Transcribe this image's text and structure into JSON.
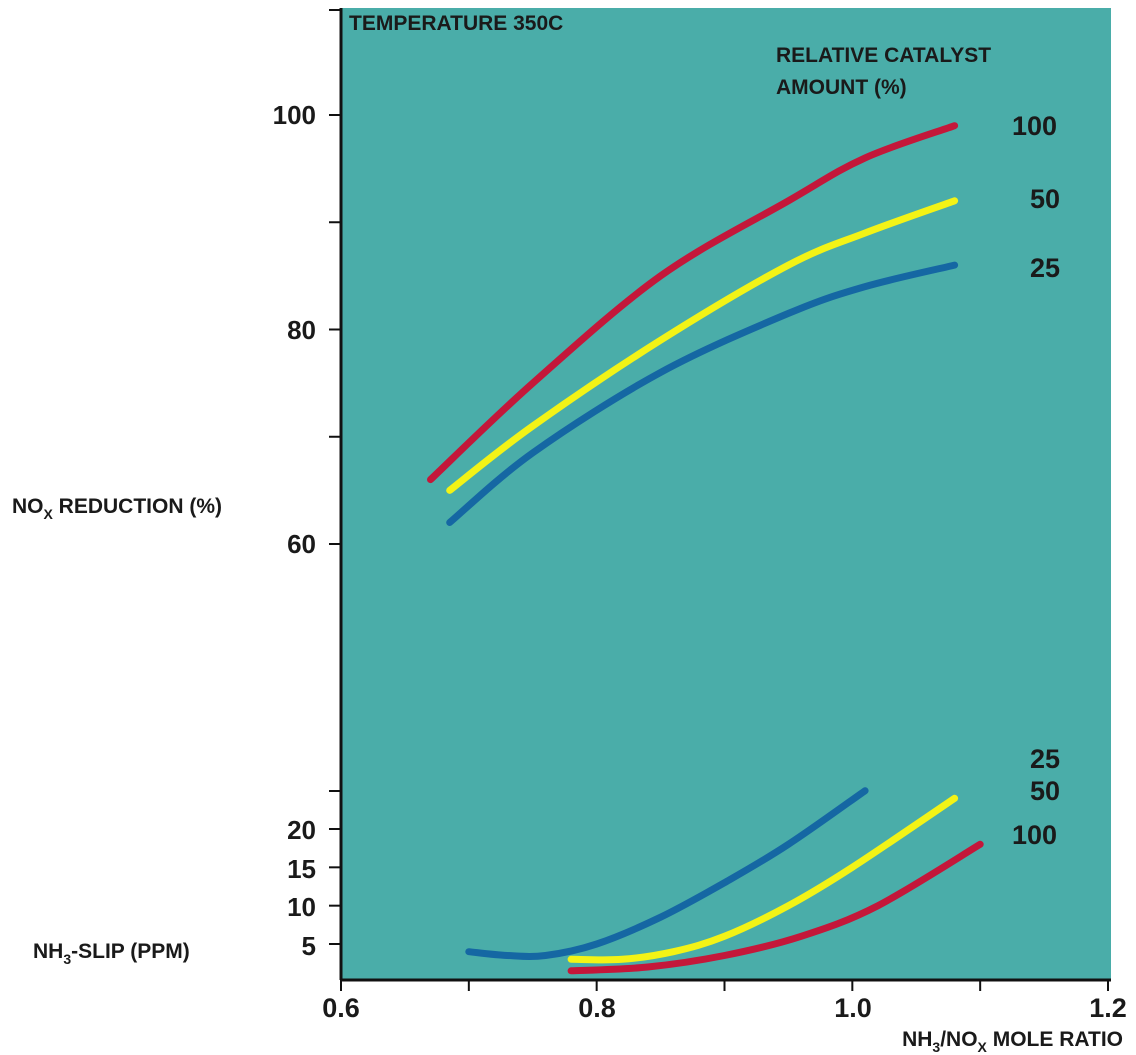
{
  "chart_data": {
    "type": "line",
    "title": "TEMPERATURE 350C",
    "legend_title": "RELATIVE CATALYST AMOUNT (%)",
    "legend_title_lines": [
      "RELATIVE CATALYST",
      "AMOUNT (%)"
    ],
    "legend_placement": "top-right",
    "grid": false,
    "xlabel": "NH3/NOx MOLE RATIO",
    "xlabel_parts": {
      "a": "NH",
      "a_sub": "3",
      "b": "/NO",
      "b_sub": "X",
      "c": " MOLE RATIO"
    },
    "x_ticks": [
      "0.6",
      "0.8",
      "1.0",
      "1.2"
    ],
    "xlim": [
      0.6,
      1.2
    ],
    "colors": {
      "background": "#4aada9",
      "red": "#c4173a",
      "yellow": "#f3f316",
      "blue": "#1567a3",
      "axis": "#111111"
    },
    "panels": [
      {
        "name": "upper",
        "ylabel": "NOx REDUCTION (%)",
        "ylabel_parts": {
          "a": "NO",
          "a_sub": "X",
          "b": " REDUCTION (%)"
        },
        "y_ticks": [
          "100",
          "80",
          "60"
        ],
        "y_tick_values": [
          100,
          80,
          60
        ],
        "y_minor_values": [
          90,
          70
        ],
        "series": [
          {
            "label": "100",
            "color": "red",
            "x": [
              0.67,
              0.75,
              0.85,
              0.95,
              1.01,
              1.08
            ],
            "y": [
              66,
              75,
              85,
              92,
              96,
              99
            ]
          },
          {
            "label": "50",
            "color": "yellow",
            "x": [
              0.685,
              0.75,
              0.85,
              0.95,
              1.01,
              1.08
            ],
            "y": [
              65,
              71,
              79,
              86,
              89,
              92
            ]
          },
          {
            "label": "25",
            "color": "blue",
            "x": [
              0.685,
              0.75,
              0.85,
              0.95,
              1.01,
              1.08
            ],
            "y": [
              62,
              68.5,
              76,
              81.5,
              84,
              86
            ]
          }
        ]
      },
      {
        "name": "lower",
        "ylabel": "NH3-SLIP (PPM)",
        "ylabel_parts": {
          "a": "NH",
          "a_sub": "3",
          "b": "-SLIP (PPM)"
        },
        "y_ticks": [
          "20",
          "15",
          "10",
          "5"
        ],
        "y_tick_values": [
          20,
          15,
          10,
          5
        ],
        "series": [
          {
            "label": "25",
            "color": "blue",
            "x": [
              0.7,
              0.73,
              0.76,
              0.8,
              0.85,
              0.9,
              0.95,
              1.01
            ],
            "y": [
              4,
              3.5,
              3.5,
              5,
              8.5,
              13,
              18,
              25
            ]
          },
          {
            "label": "50",
            "color": "yellow",
            "x": [
              0.78,
              0.82,
              0.86,
              0.9,
              0.95,
              1.0,
              1.08
            ],
            "y": [
              3,
              3,
              4,
              6,
              10,
              15,
              24
            ]
          },
          {
            "label": "100",
            "color": "red",
            "x": [
              0.78,
              0.84,
              0.9,
              0.96,
              1.02,
              1.1
            ],
            "y": [
              1.5,
              2,
              3.5,
              6,
              10,
              18
            ]
          }
        ]
      }
    ]
  }
}
